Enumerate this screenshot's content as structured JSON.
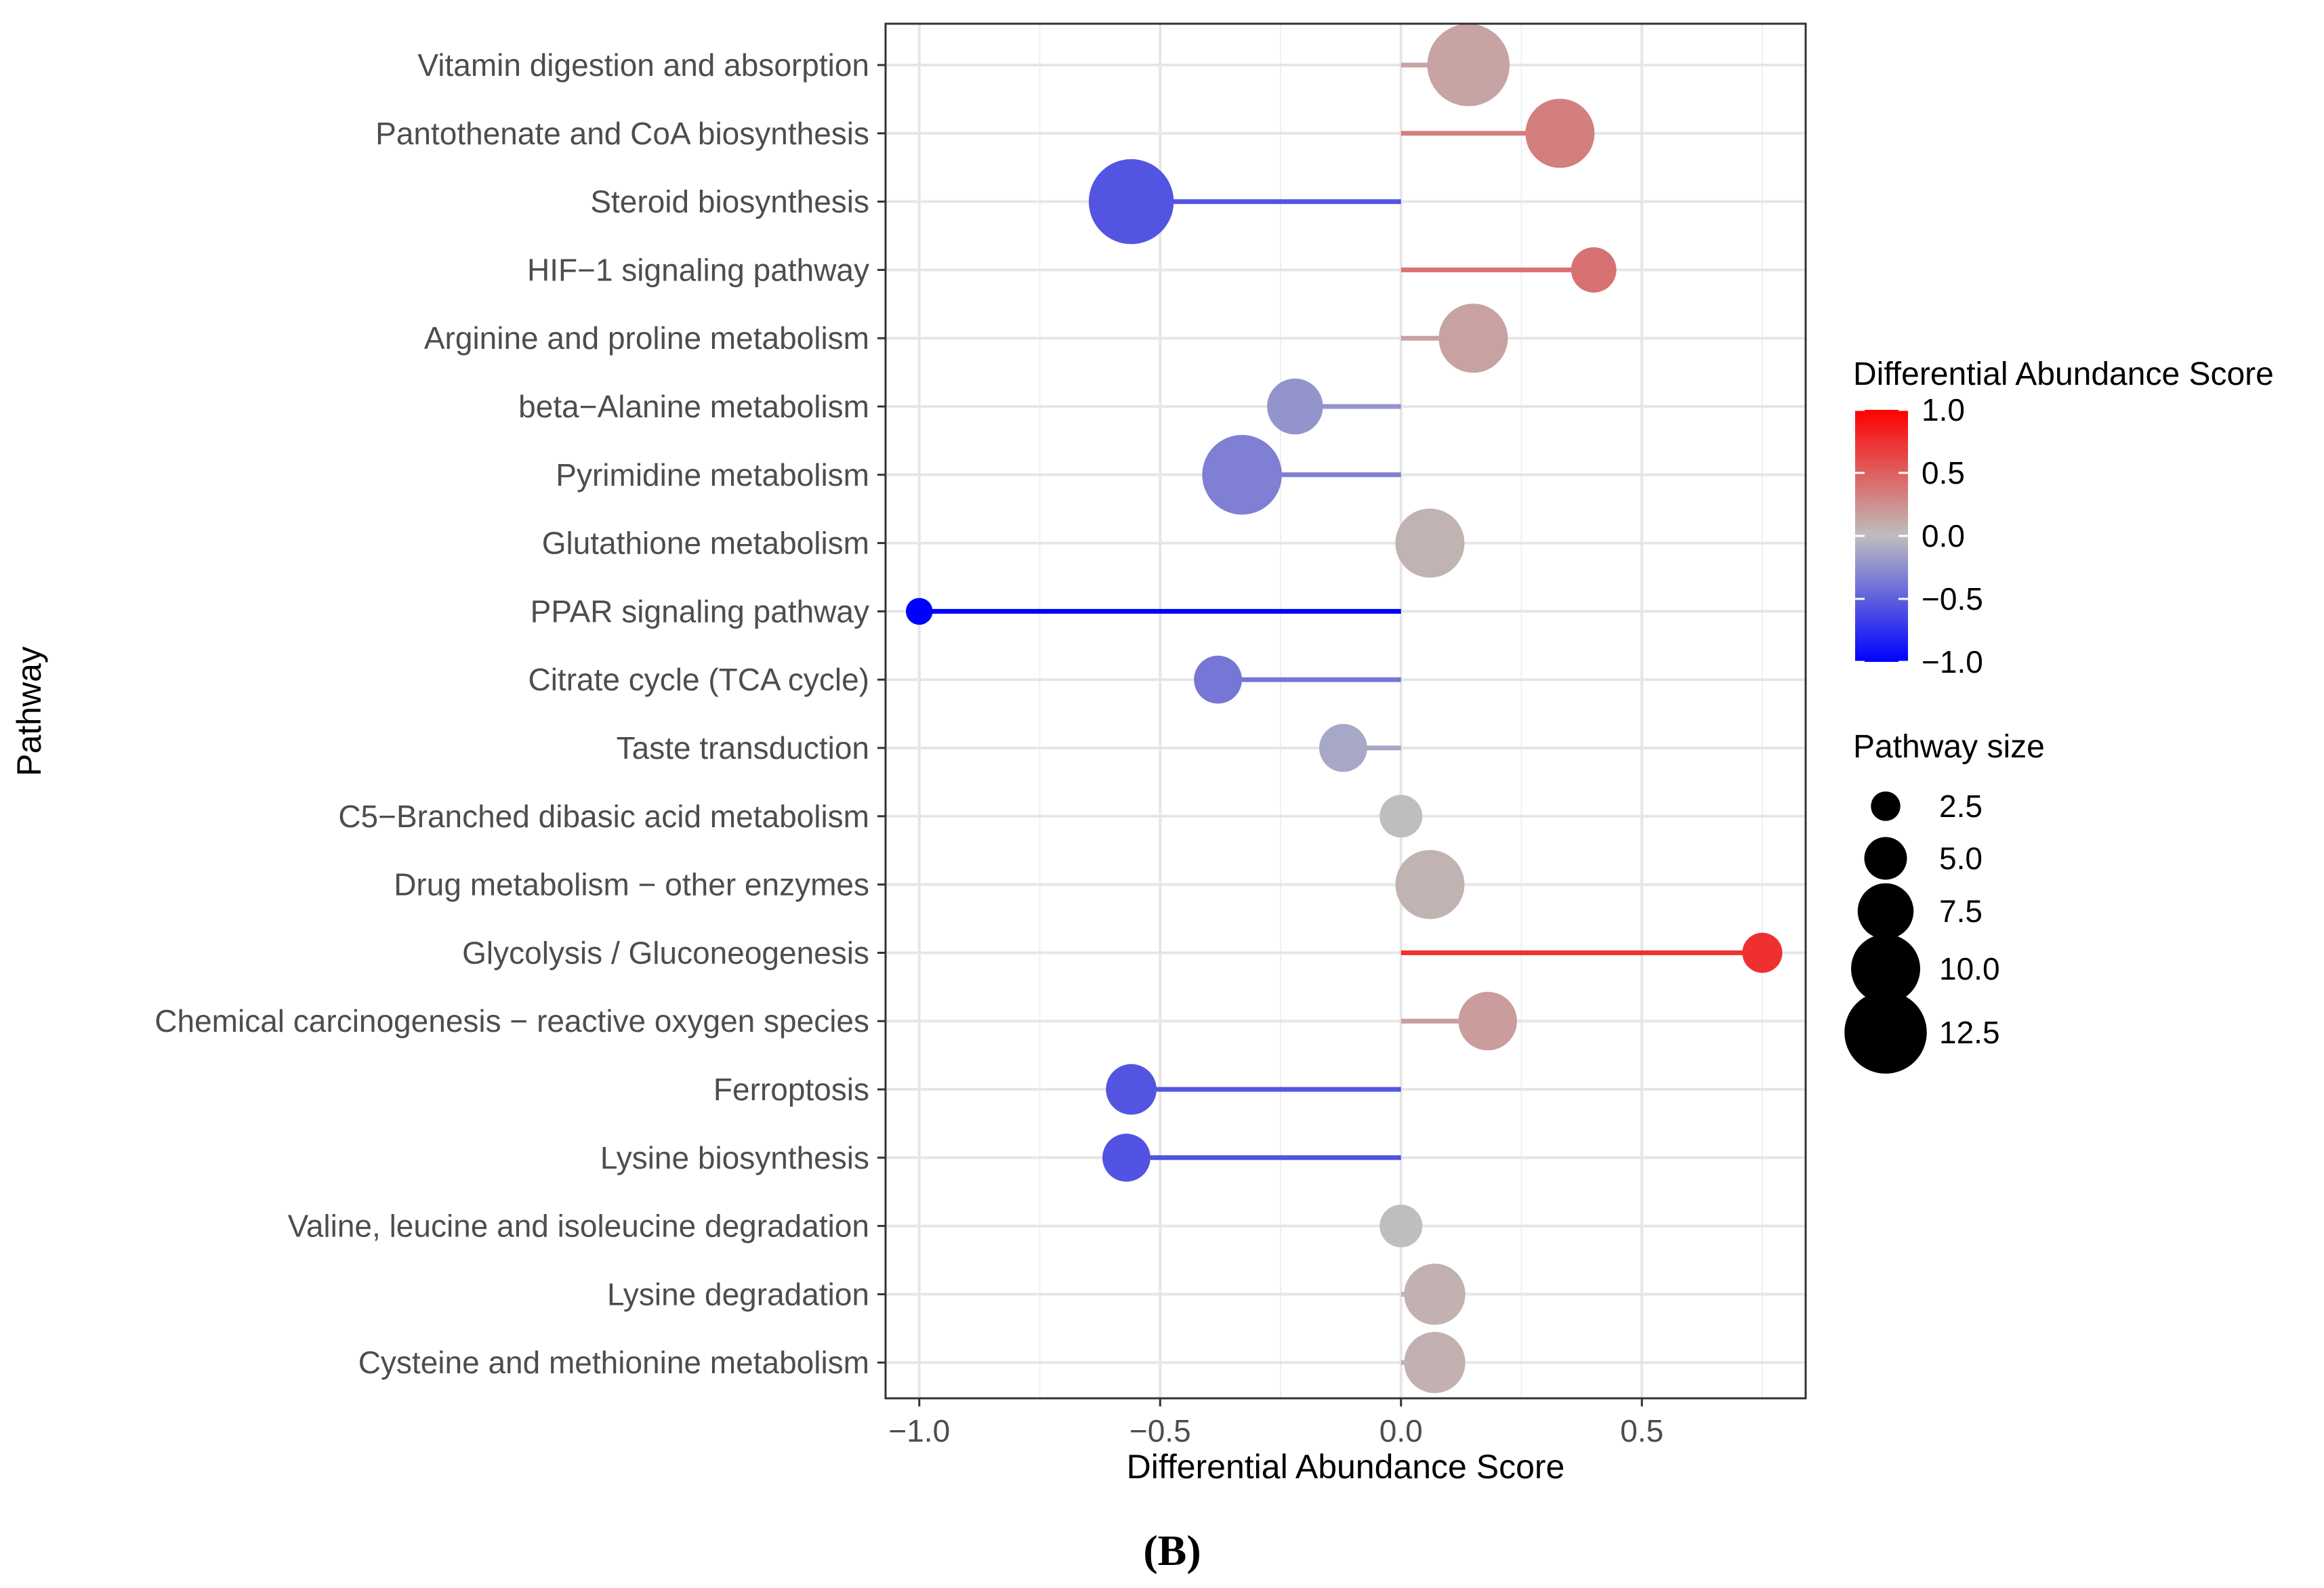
{
  "chart_data": {
    "type": "lollipop",
    "xlabel": "Differential Abundance Score",
    "ylabel": "Pathway",
    "xlim": [
      -1.07,
      0.84
    ],
    "x_ticks": [
      -1.0,
      -0.5,
      0.0,
      0.5
    ],
    "x_tick_labels": [
      "−1.0",
      "−0.5",
      "0.0",
      "0.5"
    ],
    "grid": true,
    "caption": "(B)",
    "colors": {
      "low": "#0000ff",
      "mid": "#bebebe",
      "high": "#ff0000"
    },
    "pathways": [
      {
        "name": "Vitamin digestion and absorption",
        "score": 0.14,
        "size": 12.5
      },
      {
        "name": "Pantothenate and CoA biosynthesis",
        "score": 0.33,
        "size": 10.0
      },
      {
        "name": "Steroid biosynthesis",
        "score": -0.56,
        "size": 13.0
      },
      {
        "name": "HIF−1 signaling pathway",
        "score": 0.4,
        "size": 5.5
      },
      {
        "name": "Arginine and proline metabolism",
        "score": 0.15,
        "size": 10.0
      },
      {
        "name": "beta−Alanine metabolism",
        "score": -0.22,
        "size": 7.5
      },
      {
        "name": "Pyrimidine metabolism",
        "score": -0.33,
        "size": 12.0
      },
      {
        "name": "Glutathione metabolism",
        "score": 0.06,
        "size": 10.0
      },
      {
        "name": "PPAR signaling pathway",
        "score": -1.0,
        "size": 2.0
      },
      {
        "name": "Citrate cycle (TCA cycle)",
        "score": -0.38,
        "size": 6.0
      },
      {
        "name": "Taste transduction",
        "score": -0.12,
        "size": 6.0
      },
      {
        "name": "C5−Branched dibasic acid metabolism",
        "score": 0.0,
        "size": 5.0
      },
      {
        "name": "Drug metabolism − other enzymes",
        "score": 0.06,
        "size": 10.0
      },
      {
        "name": "Glycolysis / Gluconeogenesis",
        "score": 0.75,
        "size": 4.5
      },
      {
        "name": "Chemical carcinogenesis − reactive oxygen species",
        "score": 0.18,
        "size": 8.0
      },
      {
        "name": "Ferroptosis",
        "score": -0.56,
        "size": 6.5
      },
      {
        "name": "Lysine biosynthesis",
        "score": -0.57,
        "size": 6.0
      },
      {
        "name": "Valine, leucine and isoleucine degradation",
        "score": 0.0,
        "size": 5.0
      },
      {
        "name": "Lysine degradation",
        "score": 0.07,
        "size": 8.5
      },
      {
        "name": "Cysteine and methionine metabolism",
        "score": 0.07,
        "size": 8.5
      }
    ],
    "color_legend": {
      "title": "Differential Abundance Score",
      "range": [
        -1.0,
        1.0
      ],
      "ticks": [
        1.0,
        0.5,
        0.0,
        -0.5,
        -1.0
      ],
      "tick_labels": [
        "1.0",
        "0.5",
        "0.0",
        "−0.5",
        "−1.0"
      ]
    },
    "size_legend": {
      "title": "Pathway size",
      "values": [
        2.5,
        5.0,
        7.5,
        10.0,
        12.5
      ],
      "labels": [
        "2.5",
        "5.0",
        "7.5",
        "10.0",
        "12.5"
      ]
    }
  }
}
